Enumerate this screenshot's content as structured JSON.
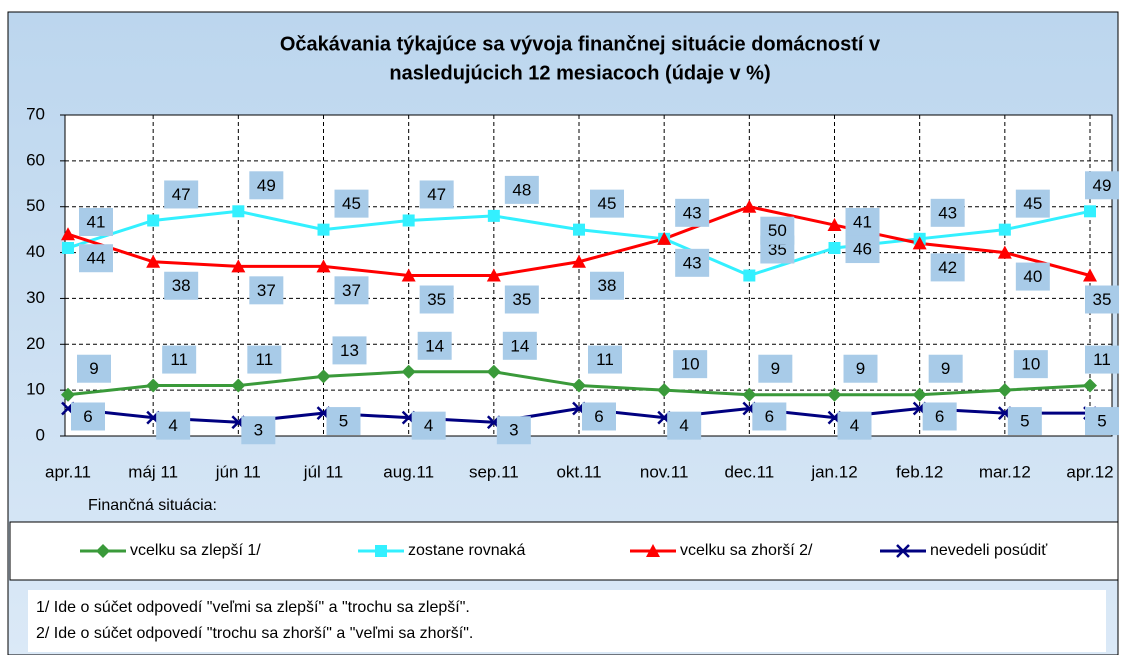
{
  "chart_data": {
    "type": "line",
    "title": "Očakávania týkajúce sa vývoja finančnej situácie domácností v",
    "subtitle": "nasledujúcich 12 mesiacoch  (údaje v %)",
    "categories": [
      "apr.11",
      "máj 11",
      "jún 11",
      "júl 11",
      "aug.11",
      "sep.11",
      "okt.11",
      "nov.11",
      "dec.11",
      "jan.12",
      "feb.12",
      "mar.12",
      "apr.12"
    ],
    "series": [
      {
        "name": "vcelku sa zlepší 1/",
        "color": "#3a9a3a",
        "marker": "diamond",
        "values": [
          9,
          11,
          11,
          13,
          14,
          14,
          11,
          10,
          9,
          9,
          9,
          10,
          11
        ]
      },
      {
        "name": "zostane rovnaká",
        "color": "#33f0ff",
        "marker": "square",
        "values": [
          41,
          47,
          49,
          45,
          47,
          48,
          45,
          43,
          35,
          41,
          43,
          45,
          49
        ]
      },
      {
        "name": "vcelku sa zhorší 2/",
        "color": "#ff0000",
        "marker": "triangle",
        "values": [
          44,
          38,
          37,
          37,
          35,
          35,
          38,
          43,
          50,
          46,
          42,
          40,
          35
        ]
      },
      {
        "name": "nevedeli posúdiť",
        "color": "#000080",
        "marker": "x",
        "values": [
          6,
          4,
          3,
          5,
          4,
          3,
          6,
          4,
          6,
          4,
          6,
          5,
          5
        ]
      }
    ],
    "ylim": [
      0,
      70
    ],
    "yticks": [
      0,
      10,
      20,
      30,
      40,
      50,
      60,
      70
    ],
    "grid": true,
    "legend_title": "Finančná situácia:",
    "legend": "bottom",
    "notes": [
      "1/ Ide o súčet odpovedí \"veľmi sa zlepší\" a \"trochu sa zlepší\".",
      "2/ Ide o súčet odpovedí \"trochu sa zhorší\" a \"veľmi sa zhorší\"."
    ]
  }
}
